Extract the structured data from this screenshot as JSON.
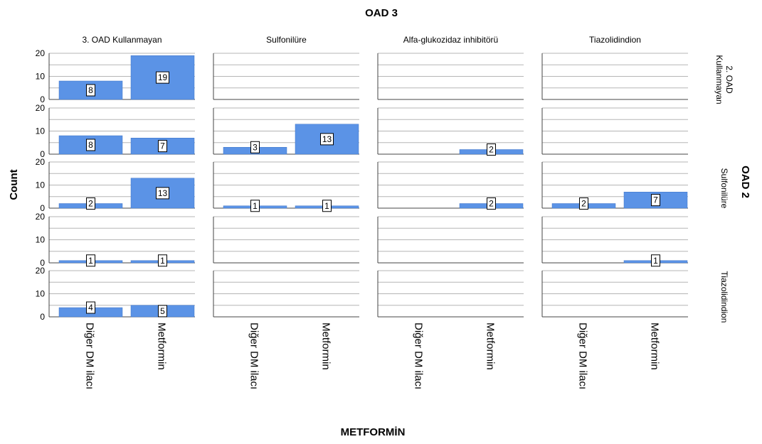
{
  "chart_data": {
    "type": "bar",
    "x_title": "METFORMİN",
    "y_title": "Count",
    "column_panel_title": "OAD 3",
    "row_panel_title": "OAD 2",
    "x_categories": [
      "Diğer DM ilacı",
      "Metformin"
    ],
    "columns": [
      "3. OAD Kullanmayan",
      "Sulfonilüre",
      "Alfa-glukozidaz inhibitörü",
      "Tiazolidindion"
    ],
    "rows": [
      "2. OAD\nKullanmayan",
      "",
      "Sulfonilüre",
      "",
      "Tiazolidindion"
    ],
    "ylim": [
      0,
      20
    ],
    "yticks": [
      0,
      10,
      20
    ],
    "bar_color": "#5b93e6",
    "values": [
      [
        [
          8,
          19
        ],
        [
          null,
          null
        ],
        [
          null,
          null
        ],
        [
          null,
          null
        ]
      ],
      [
        [
          8,
          7
        ],
        [
          3,
          13
        ],
        [
          null,
          2
        ],
        [
          null,
          null
        ]
      ],
      [
        [
          2,
          13
        ],
        [
          1,
          1
        ],
        [
          null,
          2
        ],
        [
          2,
          7
        ]
      ],
      [
        [
          1,
          1
        ],
        [
          null,
          null
        ],
        [
          null,
          null
        ],
        [
          null,
          1
        ]
      ],
      [
        [
          4,
          5
        ],
        [
          null,
          null
        ],
        [
          null,
          null
        ],
        [
          null,
          null
        ]
      ]
    ]
  }
}
